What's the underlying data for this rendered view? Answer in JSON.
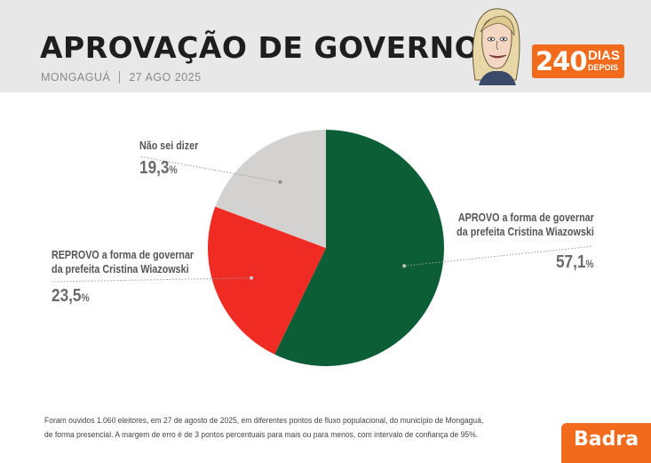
{
  "header": {
    "title": "APROVAÇÃO DE GOVERNO",
    "city": "MONGAGUÁ",
    "date": "27 AGO 2025",
    "badge_number": "240",
    "badge_word1": "DIAS",
    "badge_word2": "DEPOIS"
  },
  "chart_data": {
    "type": "pie",
    "title": "APROVAÇÃO DE GOVERNO",
    "start_angle_deg": 0,
    "direction": "clockwise",
    "slices": [
      {
        "label_lines": [
          "APROVO a forma de governar",
          "da prefeita Cristina Wiazowski"
        ],
        "value": 57.1,
        "value_text": "57,1",
        "unit": "%",
        "color": "#0b5e36"
      },
      {
        "label_lines": [
          "REPROVO a forma de governar",
          "da prefeita Cristina Wiazowski"
        ],
        "value": 23.5,
        "value_text": "23,5",
        "unit": "%",
        "color": "#f02b23"
      },
      {
        "label_lines": [
          "Não sei dizer"
        ],
        "value": 19.3,
        "value_text": "19,3",
        "unit": "%",
        "color": "#d3d2d0"
      }
    ]
  },
  "footnote": {
    "line1": "Foram ouvidos 1.060 eleitores, em 27 de agosto de 2025, em diferentes pontos de fluxo populacional, do município de Mongaguá,",
    "line2": "de forma presencial. A margem de erro é de 3 pontos percentuais para mais ou para menos, com intervalo de confiança de 95%."
  },
  "brand": {
    "name": "Badra",
    "color": "#f26b1d"
  }
}
